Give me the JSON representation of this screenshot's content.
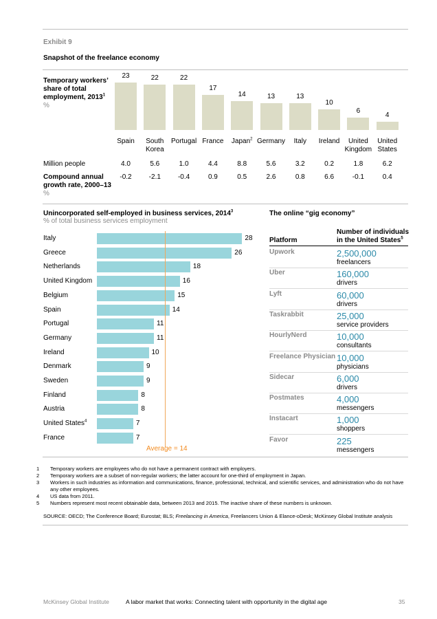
{
  "header": {
    "exhibit": "Exhibit 9",
    "title": "Snapshot of the freelance economy"
  },
  "temp_workers": {
    "label": "Temporary workers’ share of total employment, 2013",
    "label_sup": "1",
    "unit": "%",
    "million_people_label": "Million people",
    "cagr_label": "Compound annual growth rate, 2000–13",
    "cagr_unit": "%"
  },
  "self_employed": {
    "title": "Unincorporated self-employed in business services, 2014",
    "title_sup": "3",
    "subtitle": "% of total business services employment",
    "average_label": "Average = 14"
  },
  "gig": {
    "title": "The online “gig economy”",
    "col_platform": "Platform",
    "col_count": "Number of individuals in the United States",
    "col_count_sup": "5",
    "rows": [
      {
        "platform": "Upwork",
        "number": "2,500,000",
        "unit": "freelancers"
      },
      {
        "platform": "Uber",
        "number": "160,000",
        "unit": "drivers"
      },
      {
        "platform": "Lyft",
        "number": "60,000",
        "unit": "drivers"
      },
      {
        "platform": "Taskrabbit",
        "number": "25,000",
        "unit": "service providers"
      },
      {
        "platform": "HourlyNerd",
        "number": "10,000",
        "unit": "consultants"
      },
      {
        "platform": "Freelance Physician",
        "number": "10,000",
        "unit": "physicians"
      },
      {
        "platform": "Sidecar",
        "number": "6,000",
        "unit": "drivers"
      },
      {
        "platform": "Postmates",
        "number": "4,000",
        "unit": "messengers"
      },
      {
        "platform": "Instacart",
        "number": "1,000",
        "unit": "shoppers"
      },
      {
        "platform": "Favor",
        "number": "225",
        "unit": "messengers"
      }
    ]
  },
  "footnotes": [
    {
      "n": "1",
      "text": "Temporary workers are employees who do not have a permanent contract with employers."
    },
    {
      "n": "2",
      "text": "Temporary workers are a subset of non-regular workers; the latter account for one-third of employment in Japan."
    },
    {
      "n": "3",
      "text": "Workers in such industries as information and communications, finance, professional, technical, and scientific services, and administration who do not have any other employees."
    },
    {
      "n": "4",
      "text": "US data from 2011."
    },
    {
      "n": "5",
      "text": "Numbers represent most recent obtainable data, between 2013 and 2015. The inactive share of these numbers is unknown."
    }
  ],
  "source": {
    "prefix": "SOURCE: OECD; The Conference Board; Eurostat; BLS; ",
    "italic": "Freelancing in America",
    "suffix": ", Freelancers Union & Elance-oDesk; McKinsey Global Institute analysis"
  },
  "footer": {
    "publisher": "McKinsey Global Institute",
    "report": "A labor market that works: Connecting talent with opportunity in the digital age",
    "page": "35"
  },
  "colors": {
    "tan_bar": "#dcdcc6",
    "teal_bar": "#99d5dc",
    "average_line": "#f28a1e",
    "gig_number": "#2a89a8"
  },
  "chart_data": [
    {
      "type": "bar",
      "title": "Temporary workers’ share of total employment, 2013",
      "ylabel": "%",
      "categories": [
        {
          "name": "Spain",
          "sup": ""
        },
        {
          "name": "South Korea",
          "sup": ""
        },
        {
          "name": "Portugal",
          "sup": ""
        },
        {
          "name": "France",
          "sup": ""
        },
        {
          "name": "Japan",
          "sup": "2"
        },
        {
          "name": "Germany",
          "sup": ""
        },
        {
          "name": "Italy",
          "sup": ""
        },
        {
          "name": "Ireland",
          "sup": ""
        },
        {
          "name": "United Kingdom",
          "sup": ""
        },
        {
          "name": "United States",
          "sup": ""
        }
      ],
      "values": [
        23,
        22,
        22,
        17,
        14,
        13,
        13,
        10,
        6,
        4
      ],
      "million_people": [
        "4.0",
        "5.6",
        "1.0",
        "4.4",
        "8.8",
        "5.6",
        "3.2",
        "0.2",
        "1.8",
        "6.2"
      ],
      "cagr_2000_13": [
        "-0.2",
        "-2.1",
        "-0.4",
        "0.9",
        "0.5",
        "2.6",
        "0.8",
        "6.6",
        "-0.1",
        "0.4"
      ]
    },
    {
      "type": "bar",
      "orientation": "horizontal",
      "title": "Unincorporated self-employed in business services, 2014",
      "xlabel": "% of total business services employment",
      "categories": [
        {
          "name": "Italy",
          "sup": ""
        },
        {
          "name": "Greece",
          "sup": ""
        },
        {
          "name": "Netherlands",
          "sup": ""
        },
        {
          "name": "United Kingdom",
          "sup": ""
        },
        {
          "name": "Belgium",
          "sup": ""
        },
        {
          "name": "Spain",
          "sup": ""
        },
        {
          "name": "Portugal",
          "sup": ""
        },
        {
          "name": "Germany",
          "sup": ""
        },
        {
          "name": "Ireland",
          "sup": ""
        },
        {
          "name": "Denmark",
          "sup": ""
        },
        {
          "name": "Sweden",
          "sup": ""
        },
        {
          "name": "Finland",
          "sup": ""
        },
        {
          "name": "Austria",
          "sup": ""
        },
        {
          "name": "United States",
          "sup": "4"
        },
        {
          "name": "France",
          "sup": ""
        }
      ],
      "values": [
        28,
        26,
        18,
        16,
        15,
        14,
        11,
        11,
        10,
        9,
        9,
        8,
        8,
        7,
        7
      ],
      "average": 14
    }
  ]
}
